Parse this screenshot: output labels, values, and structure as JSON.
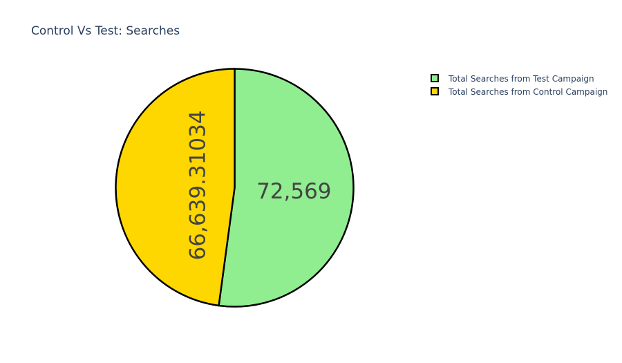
{
  "chart_data": {
    "type": "pie",
    "title": "Control Vs Test: Searches",
    "slices": [
      {
        "label": "Total Searches from Test Campaign",
        "value": 72569,
        "display_text": "72,569",
        "color": "#90ee90"
      },
      {
        "label": "Total Searches from Control Campaign",
        "value": 66639.31034,
        "display_text": "66,639.31034",
        "color": "#ffd700"
      }
    ],
    "slice_border_color": "#000000",
    "direction": "clockwise",
    "start_angle": "top",
    "legend_position": "top-right"
  }
}
